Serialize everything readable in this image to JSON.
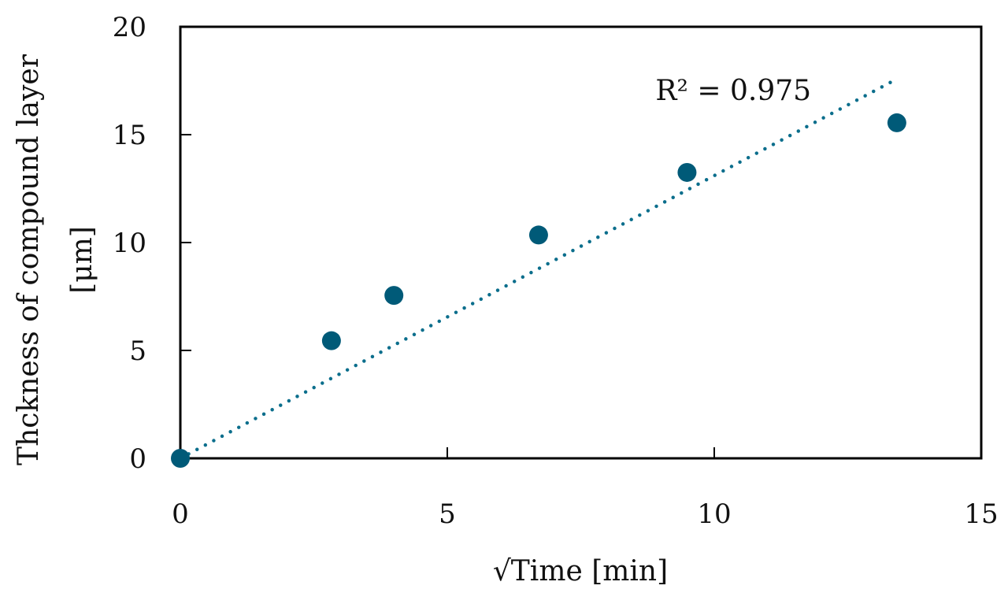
{
  "chart_data": {
    "type": "scatter",
    "title": "",
    "xlabel": "√Time [min]",
    "ylabel_lines": [
      "Thckness of compound layer",
      "[μm]"
    ],
    "xlim": [
      0,
      15
    ],
    "ylim": [
      0,
      20
    ],
    "x_ticks": [
      0,
      5,
      10,
      15
    ],
    "y_ticks": [
      0,
      5,
      10,
      15,
      20
    ],
    "x_tick_labels": [
      "0",
      "5",
      "10",
      "15"
    ],
    "y_tick_labels": [
      "0",
      "5",
      "10",
      "15",
      "20"
    ],
    "grid": false,
    "legend": "none",
    "series": [
      {
        "points": [
          {
            "x": 0,
            "y": 0
          },
          {
            "x": 2.83,
            "y": 5.45
          },
          {
            "x": 4.0,
            "y": 7.55
          },
          {
            "x": 6.71,
            "y": 10.35
          },
          {
            "x": 9.49,
            "y": 13.25
          },
          {
            "x": 13.42,
            "y": 15.55
          }
        ]
      }
    ],
    "trendline": {
      "type": "linear",
      "style": "dotted",
      "x_start": 0,
      "x_end": 13.42,
      "slope": 1.31,
      "intercept": 0
    },
    "annotations": [
      {
        "text": "R² = 0.975",
        "x": 8.9,
        "y": 16.6
      }
    ],
    "colors": {
      "marker": "#005A78",
      "trendline": "#0B6E8C",
      "axis": "#000000"
    }
  }
}
